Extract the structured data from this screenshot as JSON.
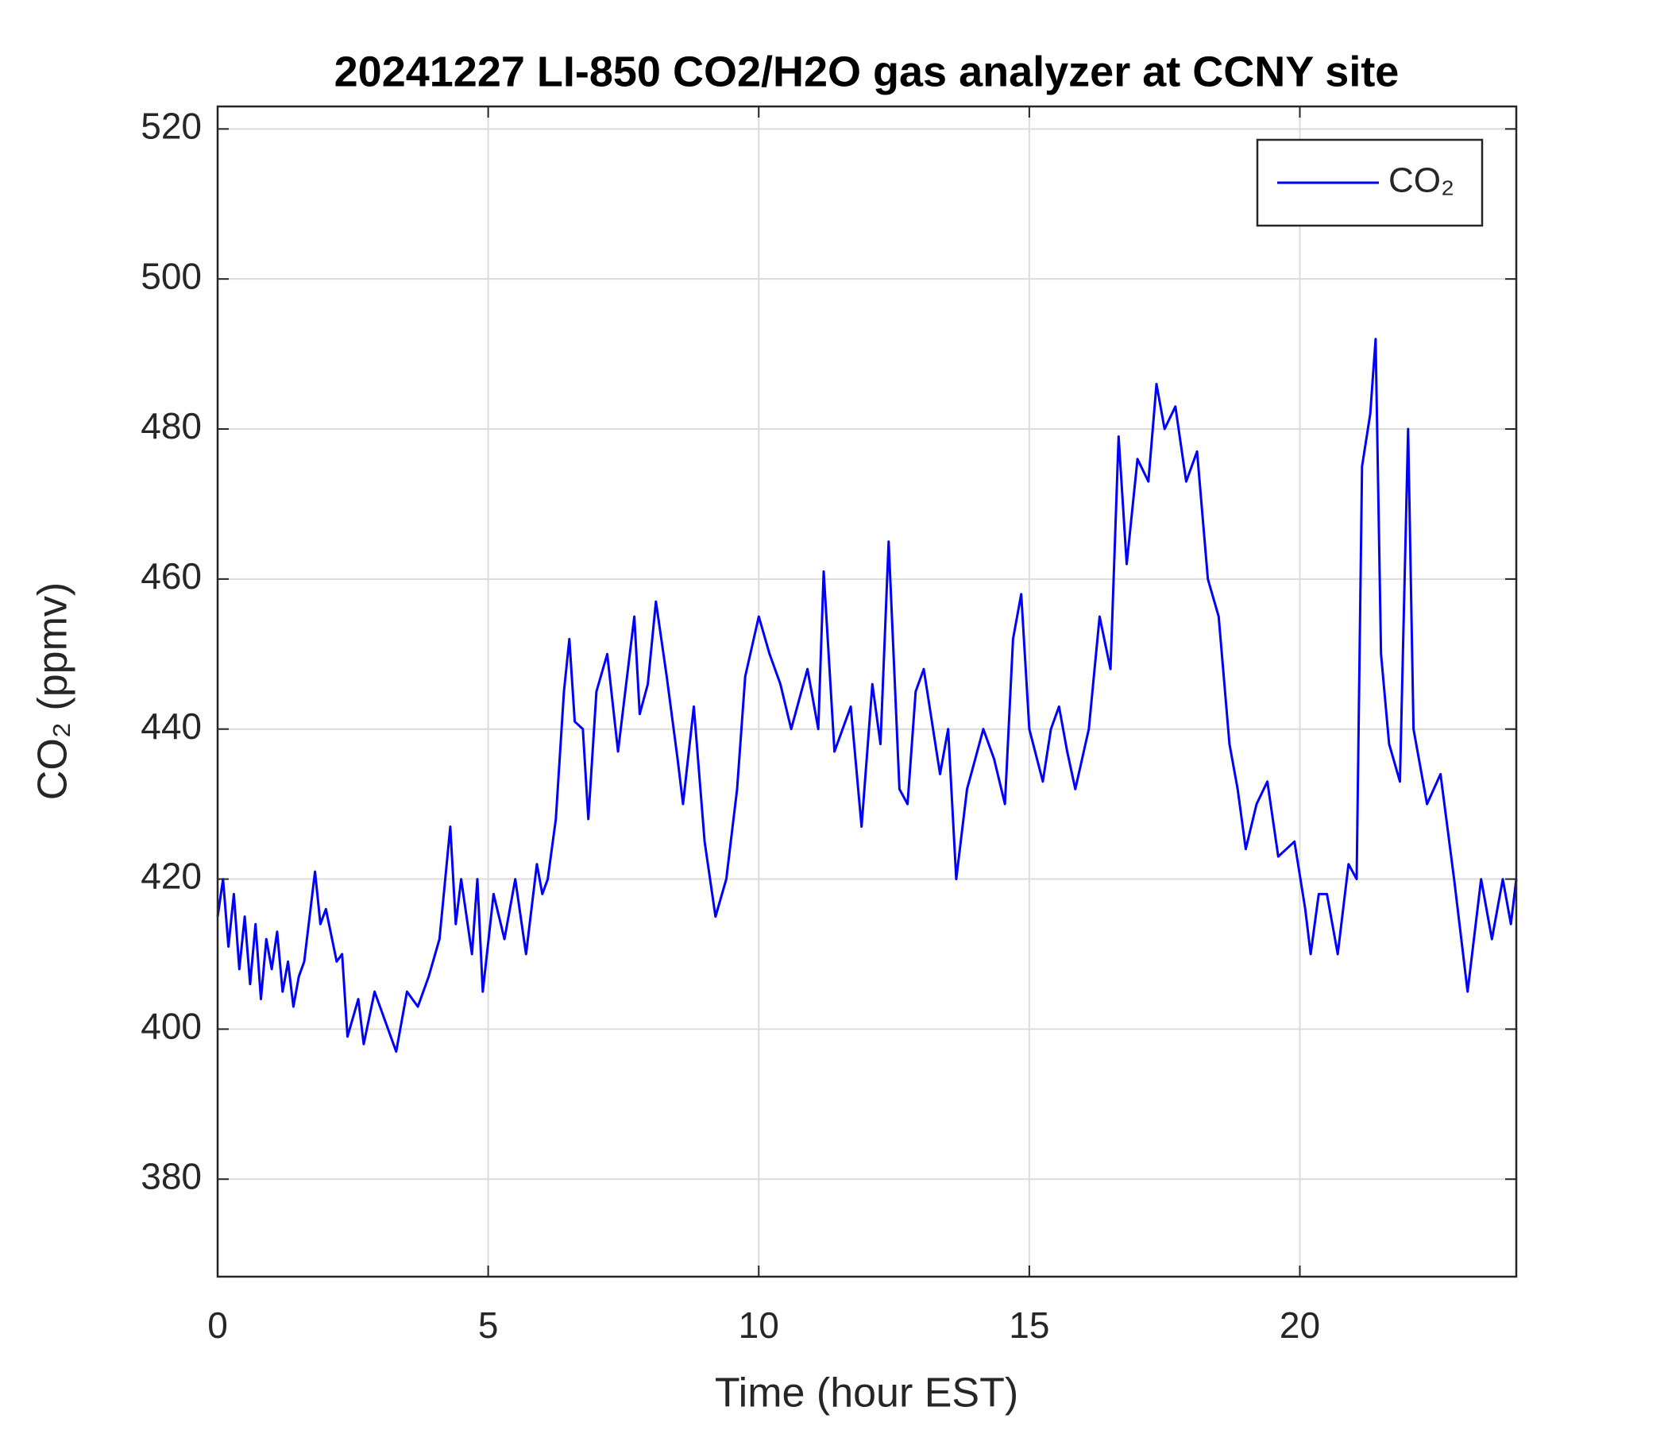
{
  "chart_data": {
    "type": "line",
    "title": "20241227 LI-850 CO2/H2O gas analyzer at CCNY site",
    "x_label": "Time (hour EST)",
    "y_label": "CO₂ (ppmv)",
    "xlim": [
      0,
      24
    ],
    "xticks": [
      0,
      5,
      10,
      15,
      20
    ],
    "ylim": [
      367,
      523
    ],
    "yticks": [
      380,
      400,
      420,
      440,
      460,
      480,
      500,
      520
    ],
    "grid": true,
    "legend": "upper right",
    "x": [
      0,
      0.1,
      0.2,
      0.3,
      0.4,
      0.5,
      0.6,
      0.7,
      0.8,
      0.9,
      1.0,
      1.1,
      1.2,
      1.3,
      1.4,
      1.5,
      1.6,
      1.8,
      1.9,
      2.0,
      2.2,
      2.3,
      2.4,
      2.6,
      2.7,
      2.9,
      3.1,
      3.3,
      3.5,
      3.7,
      3.9,
      4.1,
      4.3,
      4.4,
      4.5,
      4.7,
      4.8,
      4.9,
      5.1,
      5.3,
      5.5,
      5.7,
      5.9,
      6.0,
      6.1,
      6.25,
      6.4,
      6.5,
      6.6,
      6.75,
      6.85,
      7.0,
      7.2,
      7.4,
      7.5,
      7.7,
      7.8,
      7.95,
      8.1,
      8.3,
      8.5,
      8.6,
      8.8,
      9.0,
      9.2,
      9.4,
      9.6,
      9.75,
      10.0,
      10.2,
      10.4,
      10.6,
      10.9,
      11.1,
      11.2,
      11.4,
      11.7,
      11.9,
      12.1,
      12.25,
      12.4,
      12.6,
      12.75,
      12.9,
      13.05,
      13.35,
      13.5,
      13.65,
      13.85,
      14.0,
      14.15,
      14.35,
      14.55,
      14.7,
      14.85,
      15.0,
      15.25,
      15.4,
      15.55,
      15.7,
      15.85,
      16.1,
      16.3,
      16.5,
      16.65,
      16.8,
      17.0,
      17.2,
      17.35,
      17.5,
      17.7,
      17.9,
      18.1,
      18.3,
      18.5,
      18.7,
      18.85,
      19.0,
      19.2,
      19.4,
      19.6,
      19.9,
      20.1,
      20.2,
      20.35,
      20.5,
      20.7,
      20.9,
      21.05,
      21.15,
      21.3,
      21.4,
      21.5,
      21.65,
      21.85,
      22.0,
      22.1,
      22.35,
      22.6,
      22.85,
      23.1,
      23.35,
      23.55,
      23.75,
      23.9,
      24.0
    ],
    "series": [
      {
        "name": "CO₂",
        "color": "#0000ff",
        "values": [
          415,
          420,
          411,
          418,
          408,
          415,
          406,
          414,
          404,
          412,
          408,
          413,
          405,
          409,
          403,
          407,
          409,
          421,
          414,
          416,
          409,
          410,
          399,
          404,
          398,
          405,
          401,
          397,
          405,
          403,
          407,
          412,
          427,
          414,
          420,
          410,
          420,
          405,
          418,
          412,
          420,
          410,
          422,
          418,
          420,
          428,
          445,
          452,
          441,
          440,
          428,
          445,
          450,
          437,
          443,
          455,
          442,
          446,
          457,
          447,
          436,
          430,
          443,
          425,
          415,
          420,
          432,
          447,
          455,
          450,
          446,
          440,
          448,
          440,
          461,
          437,
          443,
          427,
          446,
          438,
          465,
          432,
          430,
          445,
          448,
          434,
          440,
          420,
          432,
          436,
          440,
          436,
          430,
          452,
          458,
          440,
          433,
          440,
          443,
          437,
          432,
          440,
          455,
          448,
          479,
          462,
          476,
          473,
          486,
          480,
          483,
          473,
          477,
          460,
          455,
          438,
          432,
          424,
          430,
          433,
          423,
          425,
          416,
          410,
          418,
          418,
          410,
          422,
          420,
          475,
          482,
          492,
          450,
          438,
          433,
          480,
          440,
          430,
          434,
          420,
          405,
          420,
          412,
          420,
          414,
          420
        ]
      }
    ]
  }
}
